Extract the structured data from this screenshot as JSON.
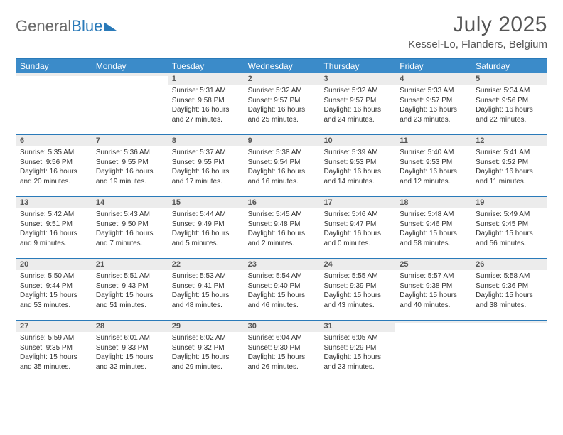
{
  "logo": {
    "part1": "General",
    "part2": "Blue"
  },
  "title": "July 2025",
  "location": "Kessel-Lo, Flanders, Belgium",
  "dow": [
    "Sunday",
    "Monday",
    "Tuesday",
    "Wednesday",
    "Thursday",
    "Friday",
    "Saturday"
  ],
  "colors": {
    "header_bg": "#3b8bc9",
    "accent": "#2a7ab9",
    "daynum_bg": "#ececec",
    "text": "#333333",
    "muted": "#555555"
  },
  "weeks": [
    [
      {
        "n": "",
        "sr": "",
        "ss": "",
        "dl": ""
      },
      {
        "n": "",
        "sr": "",
        "ss": "",
        "dl": ""
      },
      {
        "n": "1",
        "sr": "5:31 AM",
        "ss": "9:58 PM",
        "dl": "16 hours and 27 minutes."
      },
      {
        "n": "2",
        "sr": "5:32 AM",
        "ss": "9:57 PM",
        "dl": "16 hours and 25 minutes."
      },
      {
        "n": "3",
        "sr": "5:32 AM",
        "ss": "9:57 PM",
        "dl": "16 hours and 24 minutes."
      },
      {
        "n": "4",
        "sr": "5:33 AM",
        "ss": "9:57 PM",
        "dl": "16 hours and 23 minutes."
      },
      {
        "n": "5",
        "sr": "5:34 AM",
        "ss": "9:56 PM",
        "dl": "16 hours and 22 minutes."
      }
    ],
    [
      {
        "n": "6",
        "sr": "5:35 AM",
        "ss": "9:56 PM",
        "dl": "16 hours and 20 minutes."
      },
      {
        "n": "7",
        "sr": "5:36 AM",
        "ss": "9:55 PM",
        "dl": "16 hours and 19 minutes."
      },
      {
        "n": "8",
        "sr": "5:37 AM",
        "ss": "9:55 PM",
        "dl": "16 hours and 17 minutes."
      },
      {
        "n": "9",
        "sr": "5:38 AM",
        "ss": "9:54 PM",
        "dl": "16 hours and 16 minutes."
      },
      {
        "n": "10",
        "sr": "5:39 AM",
        "ss": "9:53 PM",
        "dl": "16 hours and 14 minutes."
      },
      {
        "n": "11",
        "sr": "5:40 AM",
        "ss": "9:53 PM",
        "dl": "16 hours and 12 minutes."
      },
      {
        "n": "12",
        "sr": "5:41 AM",
        "ss": "9:52 PM",
        "dl": "16 hours and 11 minutes."
      }
    ],
    [
      {
        "n": "13",
        "sr": "5:42 AM",
        "ss": "9:51 PM",
        "dl": "16 hours and 9 minutes."
      },
      {
        "n": "14",
        "sr": "5:43 AM",
        "ss": "9:50 PM",
        "dl": "16 hours and 7 minutes."
      },
      {
        "n": "15",
        "sr": "5:44 AM",
        "ss": "9:49 PM",
        "dl": "16 hours and 5 minutes."
      },
      {
        "n": "16",
        "sr": "5:45 AM",
        "ss": "9:48 PM",
        "dl": "16 hours and 2 minutes."
      },
      {
        "n": "17",
        "sr": "5:46 AM",
        "ss": "9:47 PM",
        "dl": "16 hours and 0 minutes."
      },
      {
        "n": "18",
        "sr": "5:48 AM",
        "ss": "9:46 PM",
        "dl": "15 hours and 58 minutes."
      },
      {
        "n": "19",
        "sr": "5:49 AM",
        "ss": "9:45 PM",
        "dl": "15 hours and 56 minutes."
      }
    ],
    [
      {
        "n": "20",
        "sr": "5:50 AM",
        "ss": "9:44 PM",
        "dl": "15 hours and 53 minutes."
      },
      {
        "n": "21",
        "sr": "5:51 AM",
        "ss": "9:43 PM",
        "dl": "15 hours and 51 minutes."
      },
      {
        "n": "22",
        "sr": "5:53 AM",
        "ss": "9:41 PM",
        "dl": "15 hours and 48 minutes."
      },
      {
        "n": "23",
        "sr": "5:54 AM",
        "ss": "9:40 PM",
        "dl": "15 hours and 46 minutes."
      },
      {
        "n": "24",
        "sr": "5:55 AM",
        "ss": "9:39 PM",
        "dl": "15 hours and 43 minutes."
      },
      {
        "n": "25",
        "sr": "5:57 AM",
        "ss": "9:38 PM",
        "dl": "15 hours and 40 minutes."
      },
      {
        "n": "26",
        "sr": "5:58 AM",
        "ss": "9:36 PM",
        "dl": "15 hours and 38 minutes."
      }
    ],
    [
      {
        "n": "27",
        "sr": "5:59 AM",
        "ss": "9:35 PM",
        "dl": "15 hours and 35 minutes."
      },
      {
        "n": "28",
        "sr": "6:01 AM",
        "ss": "9:33 PM",
        "dl": "15 hours and 32 minutes."
      },
      {
        "n": "29",
        "sr": "6:02 AM",
        "ss": "9:32 PM",
        "dl": "15 hours and 29 minutes."
      },
      {
        "n": "30",
        "sr": "6:04 AM",
        "ss": "9:30 PM",
        "dl": "15 hours and 26 minutes."
      },
      {
        "n": "31",
        "sr": "6:05 AM",
        "ss": "9:29 PM",
        "dl": "15 hours and 23 minutes."
      },
      {
        "n": "",
        "sr": "",
        "ss": "",
        "dl": ""
      },
      {
        "n": "",
        "sr": "",
        "ss": "",
        "dl": ""
      }
    ]
  ],
  "labels": {
    "sunrise": "Sunrise: ",
    "sunset": "Sunset: ",
    "daylight": "Daylight: "
  }
}
